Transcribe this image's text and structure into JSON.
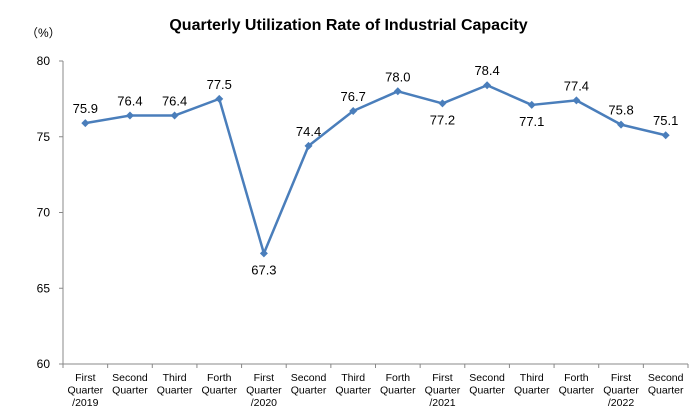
{
  "chart_data": {
    "type": "line",
    "title": "Quarterly Utilization Rate of Industrial Capacity",
    "unit_label": "（%）",
    "categories": [
      [
        "First",
        "Quarter",
        "/2019"
      ],
      [
        "Second",
        "Quarter"
      ],
      [
        "Third",
        "Quarter"
      ],
      [
        "Forth",
        "Quarter"
      ],
      [
        "First",
        "Quarter",
        "/2020"
      ],
      [
        "Second",
        "Quarter"
      ],
      [
        "Third",
        "Quarter"
      ],
      [
        "Forth",
        "Quarter"
      ],
      [
        "First",
        "Quarter",
        "/2021"
      ],
      [
        "Second",
        "Quarter"
      ],
      [
        "Third",
        "Quarter"
      ],
      [
        "Forth",
        "Quarter"
      ],
      [
        "First",
        "Quarter",
        "/2022"
      ],
      [
        "Second",
        "Quarter"
      ]
    ],
    "series": [
      {
        "values": [
          75.9,
          76.4,
          76.4,
          77.5,
          67.3,
          74.4,
          76.7,
          78.0,
          77.2,
          78.4,
          77.1,
          77.4,
          75.8,
          75.1
        ],
        "data_labels": [
          "75.9",
          "76.4",
          "76.4",
          "77.5",
          "67.3",
          "74.4",
          "76.7",
          "78.0",
          "77.2",
          "78.4",
          "77.1",
          "77.4",
          "75.8",
          "75.1"
        ]
      }
    ],
    "ylim": [
      60,
      80
    ],
    "yticks": [
      60,
      65,
      70,
      75,
      80
    ],
    "grid": false,
    "legend": "none",
    "line_color": "#4a7ebb",
    "xlabel": "",
    "ylabel": ""
  }
}
